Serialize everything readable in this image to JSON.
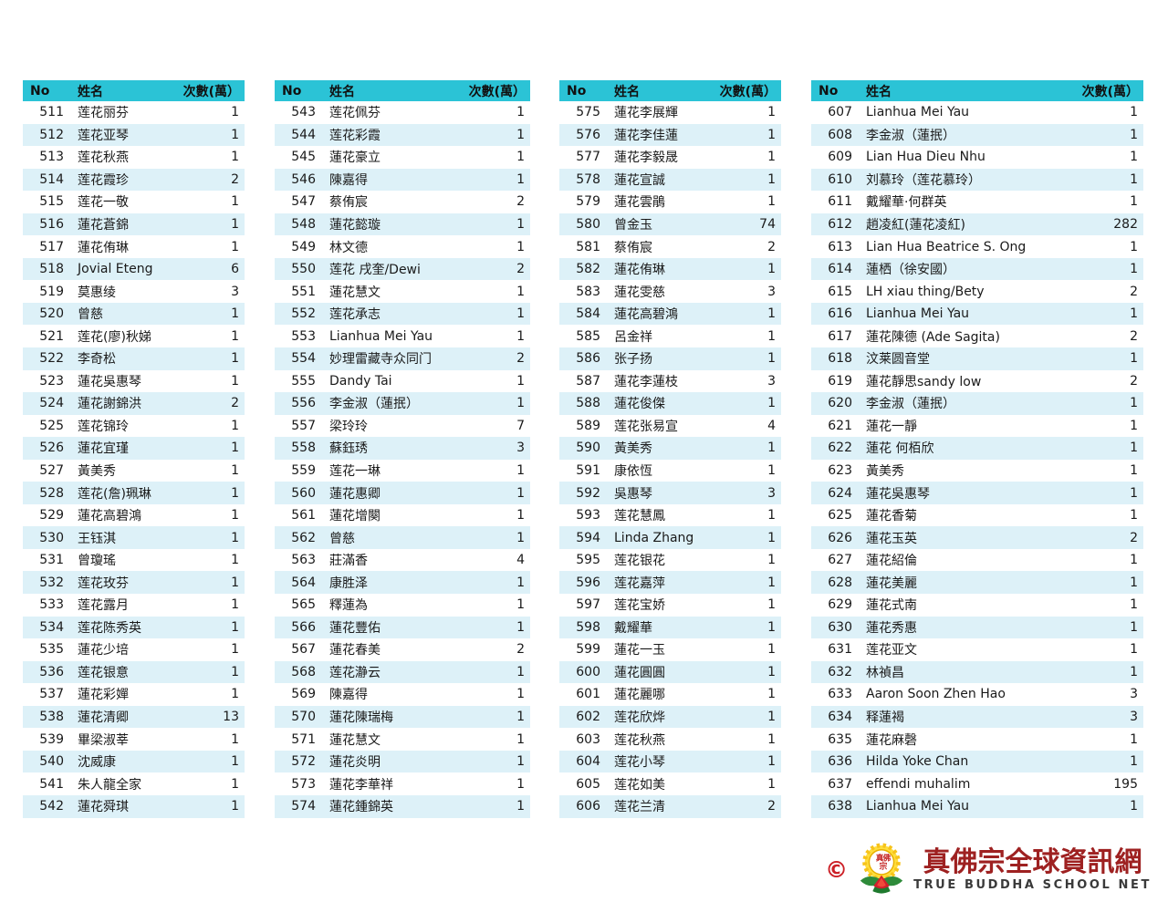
{
  "table_header": {
    "no": "No",
    "name": "姓名",
    "count": "次數(萬）"
  },
  "columns": [
    {
      "rows": [
        [
          511,
          "莲花丽芬",
          1
        ],
        [
          512,
          "莲花亚琴",
          1
        ],
        [
          513,
          "莲花秋燕",
          1
        ],
        [
          514,
          "莲花霞珍",
          2
        ],
        [
          515,
          "莲花一敬",
          1
        ],
        [
          516,
          "蓮花蒼錦",
          1
        ],
        [
          517,
          "蓮花侑琳",
          1
        ],
        [
          518,
          "Jovial Eteng",
          6
        ],
        [
          519,
          "莫惠绫",
          3
        ],
        [
          520,
          "曾慈",
          1
        ],
        [
          521,
          "莲花(廖)秋娣",
          1
        ],
        [
          522,
          "李奇松",
          1
        ],
        [
          523,
          "蓮花吳惠琴",
          1
        ],
        [
          524,
          "蓮花謝錦洪",
          2
        ],
        [
          525,
          "莲花锦玲",
          1
        ],
        [
          526,
          "蓮花宜瑾",
          1
        ],
        [
          527,
          "黃美秀",
          1
        ],
        [
          528,
          "莲花(詹)珮琳",
          1
        ],
        [
          529,
          "蓮花高碧鴻",
          1
        ],
        [
          530,
          "王钰淇",
          1
        ],
        [
          531,
          "曾瓊瑤",
          1
        ],
        [
          532,
          "莲花玫芬",
          1
        ],
        [
          533,
          "莲花露月",
          1
        ],
        [
          534,
          "莲花陈秀英",
          1
        ],
        [
          535,
          "蓮花少培",
          1
        ],
        [
          536,
          "莲花银意",
          1
        ],
        [
          537,
          "蓮花彩嬋",
          1
        ],
        [
          538,
          "蓮花清卿",
          13
        ],
        [
          539,
          "畢梁淑莘",
          1
        ],
        [
          540,
          "沈威康",
          1
        ],
        [
          541,
          "朱人龍全家",
          1
        ],
        [
          542,
          "蓮花舜琪",
          1
        ]
      ]
    },
    {
      "rows": [
        [
          543,
          "莲花佩芬",
          1
        ],
        [
          544,
          "莲花彩霞",
          1
        ],
        [
          545,
          "蓮花豪立",
          1
        ],
        [
          546,
          "陳嘉得",
          1
        ],
        [
          547,
          "蔡侑宸",
          2
        ],
        [
          548,
          "蓮花懿璇",
          1
        ],
        [
          549,
          "林文德",
          1
        ],
        [
          550,
          "莲花 戌奎/Dewi",
          2
        ],
        [
          551,
          "蓮花慧文",
          1
        ],
        [
          552,
          "莲花承志",
          1
        ],
        [
          553,
          "Lianhua Mei Yau",
          1
        ],
        [
          554,
          "妙理雷藏寺众同门",
          2
        ],
        [
          555,
          "Dandy Tai",
          1
        ],
        [
          556,
          "李金淑（蓮抿）",
          1
        ],
        [
          557,
          "梁玲玲",
          7
        ],
        [
          558,
          "蘇鈺琇",
          3
        ],
        [
          559,
          "莲花一琳",
          1
        ],
        [
          560,
          "蓮花惠卿",
          1
        ],
        [
          561,
          "蓮花增闋",
          1
        ],
        [
          562,
          "曾慈",
          1
        ],
        [
          563,
          "莊滿香",
          4
        ],
        [
          564,
          "康胜泽",
          1
        ],
        [
          565,
          "釋蓮為",
          1
        ],
        [
          566,
          "蓮花豐佑",
          1
        ],
        [
          567,
          "蓮花春美",
          2
        ],
        [
          568,
          "莲花瀞云",
          1
        ],
        [
          569,
          "陳嘉得",
          1
        ],
        [
          570,
          "蓮花陳瑞梅",
          1
        ],
        [
          571,
          "蓮花慧文",
          1
        ],
        [
          572,
          "蓮花炎明",
          1
        ],
        [
          573,
          "蓮花李華祥",
          1
        ],
        [
          574,
          "蓮花鍾錦英",
          1
        ]
      ]
    },
    {
      "rows": [
        [
          575,
          "蓮花李展輝",
          1
        ],
        [
          576,
          "蓮花李佳蓮",
          1
        ],
        [
          577,
          "蓮花李毅晟",
          1
        ],
        [
          578,
          "蓮花宣誠",
          1
        ],
        [
          579,
          "蓮花雲鵑",
          1
        ],
        [
          580,
          "曾金玉",
          74
        ],
        [
          581,
          "蔡侑宸",
          2
        ],
        [
          582,
          "蓮花侑琳",
          1
        ],
        [
          583,
          "蓮花雯慈",
          3
        ],
        [
          584,
          "蓮花高碧鴻",
          1
        ],
        [
          585,
          "呂金祥",
          1
        ],
        [
          586,
          "张子扬",
          1
        ],
        [
          587,
          "蓮花李蓮枝",
          3
        ],
        [
          588,
          "蓮花俊傑",
          1
        ],
        [
          589,
          "莲花张易宣",
          4
        ],
        [
          590,
          "黃美秀",
          1
        ],
        [
          591,
          "康依恆",
          1
        ],
        [
          592,
          "吳惠琴",
          3
        ],
        [
          593,
          "莲花慧鳳",
          1
        ],
        [
          594,
          "Linda Zhang",
          1
        ],
        [
          595,
          "莲花银花",
          1
        ],
        [
          596,
          "莲花嘉萍",
          1
        ],
        [
          597,
          "莲花宝娇",
          1
        ],
        [
          598,
          "戴耀華",
          1
        ],
        [
          599,
          "蓮花一玉",
          1
        ],
        [
          600,
          "蓮花圓圓",
          1
        ],
        [
          601,
          "蓮花麗哪",
          1
        ],
        [
          602,
          "莲花欣烨",
          1
        ],
        [
          603,
          "莲花秋燕",
          1
        ],
        [
          604,
          "莲花小琴",
          1
        ],
        [
          605,
          "莲花如美",
          1
        ],
        [
          606,
          "莲花兰清",
          2
        ]
      ]
    },
    {
      "rows": [
        [
          607,
          "Lianhua Mei Yau",
          1
        ],
        [
          608,
          "李金淑（蓮抿）",
          1
        ],
        [
          609,
          "Lian Hua Dieu Nhu",
          1
        ],
        [
          610,
          "刘慕玲（莲花慕玲）",
          1
        ],
        [
          611,
          "戴耀華·何群英",
          1
        ],
        [
          612,
          "趙凌紅(蓮花凌紅)",
          282
        ],
        [
          613,
          "Lian Hua Beatrice S. Ong",
          1
        ],
        [
          614,
          "蓮栖（徐安國）",
          1
        ],
        [
          615,
          "LH xiau thing/Bety",
          2
        ],
        [
          616,
          "Lianhua Mei Yau",
          1
        ],
        [
          617,
          "蓮花陳德 (Ade Sagita)",
          2
        ],
        [
          618,
          "汶莱圆音堂",
          1
        ],
        [
          619,
          "蓮花靜思sandy low",
          2
        ],
        [
          620,
          "李金淑（蓮抿）",
          1
        ],
        [
          621,
          "蓮花一靜",
          1
        ],
        [
          622,
          "蓮花 何栢欣",
          1
        ],
        [
          623,
          "黃美秀",
          1
        ],
        [
          624,
          "蓮花吳惠琴",
          1
        ],
        [
          625,
          "蓮花香菊",
          1
        ],
        [
          626,
          "蓮花玉英",
          2
        ],
        [
          627,
          "蓮花紹倫",
          1
        ],
        [
          628,
          "蓮花美麗",
          1
        ],
        [
          629,
          "蓮花式南",
          1
        ],
        [
          630,
          "蓮花秀惠",
          1
        ],
        [
          631,
          "莲花亚文",
          1
        ],
        [
          632,
          "林禎昌",
          1
        ],
        [
          633,
          "Aaron Soon Zhen Hao",
          3
        ],
        [
          634,
          "释蓮褐",
          3
        ],
        [
          635,
          "蓮花麻磬",
          1
        ],
        [
          636,
          "Hilda Yoke Chan",
          1
        ],
        [
          637,
          "effendi muhalim",
          195
        ],
        [
          638,
          "Lianhua Mei Yau",
          1
        ]
      ]
    }
  ],
  "footer": {
    "copyright": "©",
    "logo_title": "真佛宗全球資訊網",
    "logo_subtitle": "TRUE BUDDHA SCHOOL NET"
  },
  "colors": {
    "header_bg": "#2bc3d6",
    "row_alt_bg": "#ddf1f8",
    "logo_red": "#9e2121",
    "copyright_red": "#cc2027"
  }
}
